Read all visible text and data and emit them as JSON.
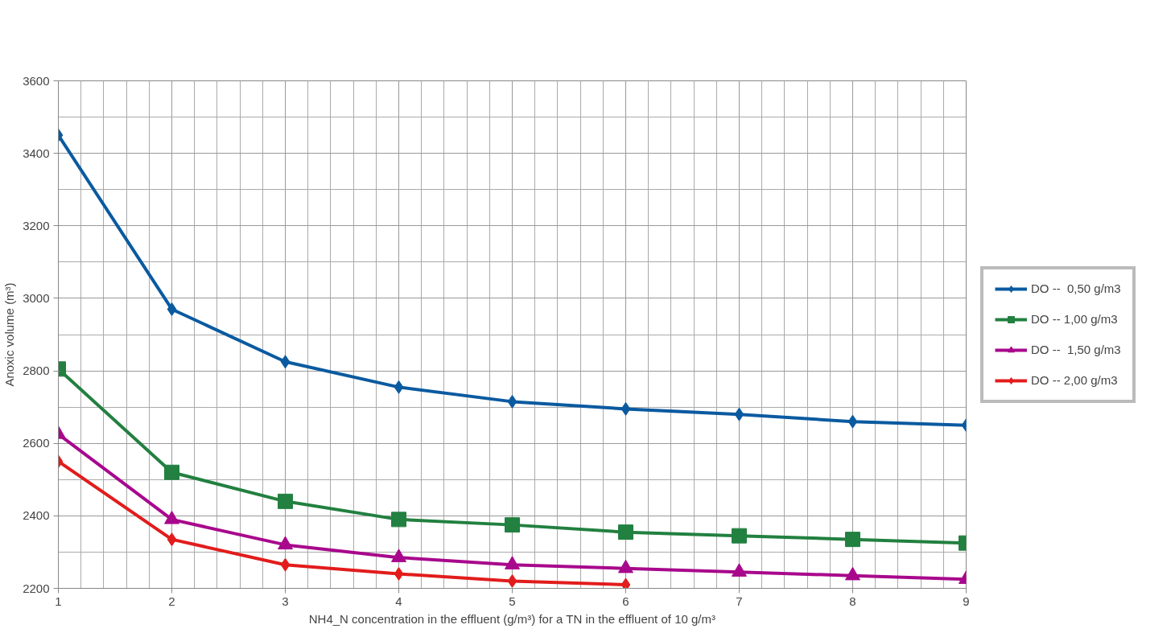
{
  "chart_data": {
    "type": "line",
    "xlabel": "NH4_N concentration in the effluent (g/m³) for a TN in the effluent of 10 g/m³",
    "ylabel": "Anoxic volume (m³)",
    "x": [
      1,
      2,
      3,
      4,
      5,
      6,
      7,
      8,
      9
    ],
    "xlim": [
      1,
      9
    ],
    "xticks": [
      1,
      2,
      3,
      4,
      5,
      6,
      7,
      8,
      9
    ],
    "ylim": [
      2200,
      3600
    ],
    "yticks": [
      2200,
      2400,
      2600,
      2800,
      3000,
      3200,
      3400,
      3600
    ],
    "grid": true,
    "legend": "right",
    "line_style": "solid",
    "series": [
      {
        "name": "DO --  0,50 g/m3",
        "color": "#0a5aa0",
        "marker": "diamond",
        "values": [
          3450,
          2970,
          2825,
          2755,
          2715,
          2695,
          2680,
          2660,
          2650
        ]
      },
      {
        "name": "DO -- 1,00 g/m3",
        "color": "#228040",
        "marker": "square",
        "values": [
          2805,
          2520,
          2440,
          2390,
          2375,
          2355,
          2345,
          2335,
          2325
        ]
      },
      {
        "name": "DO --  1,50 g/m3",
        "color": "#a8088c",
        "marker": "triangle",
        "values": [
          2625,
          2390,
          2320,
          2285,
          2265,
          2255,
          2245,
          2235,
          2225
        ]
      },
      {
        "name": "DO -- 2,00 g/m3",
        "color": "#e21c1c",
        "marker": "diamond",
        "values": [
          2550,
          2335,
          2265,
          2240,
          2220,
          2210,
          null,
          null,
          null
        ]
      }
    ]
  }
}
